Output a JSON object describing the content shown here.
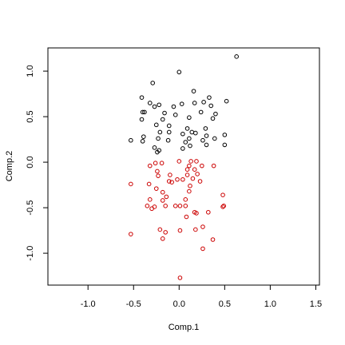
{
  "chart_data": {
    "type": "scatter",
    "xlabel": "Comp.1",
    "ylabel": "Comp.2",
    "xlim": [
      -1.44,
      1.54
    ],
    "ylim": [
      -1.35,
      1.255
    ],
    "xticks": [
      {
        "value": -1,
        "label": "-1.0"
      },
      -0.5,
      {
        "value": 0,
        "label": "0.0"
      },
      0.5,
      {
        "value": 1,
        "label": "1.0"
      },
      1.5
    ],
    "yticks": [
      {
        "value": -1,
        "label": "-1.0"
      },
      -0.5,
      {
        "value": 0,
        "label": "0.0"
      },
      0.5,
      {
        "value": 1,
        "label": "1.0"
      }
    ],
    "series": [
      {
        "color": "#000000",
        "x": [
          0.63,
          0.0,
          -0.29,
          0.16,
          -0.41,
          0.33,
          -0.32,
          0.17,
          -0.22,
          0.03,
          0.52,
          0.27,
          -0.27,
          -0.06,
          0.35,
          -0.4,
          -0.38,
          0.24,
          -0.16,
          -0.04,
          0.4,
          -0.41,
          -0.18,
          0.37,
          0.11,
          -0.25,
          -0.11,
          0.09,
          0.29,
          -0.21,
          -0.11,
          0.14,
          0.04,
          0.18,
          -0.39,
          0.3,
          0.5,
          -0.23,
          0.11,
          -0.53,
          -0.4,
          -0.12,
          0.26,
          0.39,
          0.07,
          0.3,
          0.5,
          -0.27,
          -0.22,
          0.04,
          -0.24,
          0.12
        ],
        "y": [
          1.16,
          0.99,
          0.87,
          0.78,
          0.71,
          0.71,
          0.65,
          0.65,
          0.63,
          0.64,
          0.67,
          0.66,
          0.61,
          0.61,
          0.62,
          0.55,
          0.55,
          0.55,
          0.54,
          0.52,
          0.53,
          0.47,
          0.47,
          0.48,
          0.49,
          0.41,
          0.4,
          0.37,
          0.37,
          0.33,
          0.33,
          0.33,
          0.31,
          0.32,
          0.28,
          0.29,
          0.3,
          0.26,
          0.26,
          0.24,
          0.23,
          0.24,
          0.24,
          0.26,
          0.22,
          0.19,
          0.19,
          0.16,
          0.13,
          0.15,
          0.11,
          0.18
        ]
      },
      {
        "color": "#cc0000",
        "x": [
          0.13,
          0.0,
          0.19,
          -0.26,
          -0.19,
          0.25,
          0.38,
          0.11,
          -0.32,
          0.09,
          0.17,
          -0.24,
          0.2,
          -0.1,
          0.09,
          -0.23,
          0.15,
          -0.02,
          0.04,
          -0.11,
          -0.08,
          0.23,
          -0.33,
          -0.53,
          0.12,
          -0.25,
          0.11,
          -0.18,
          0.48,
          -0.14,
          0.07,
          -0.32,
          -0.18,
          0.01,
          0.49,
          -0.35,
          0.48,
          -0.27,
          -0.15,
          0.07,
          -0.3,
          -0.04,
          0.17,
          0.19,
          0.32,
          0.08,
          0.26,
          0.18,
          0.01,
          -0.21,
          -0.15,
          -0.53,
          -0.18,
          0.37,
          0.26,
          0.01
        ],
        "y": [
          0.01,
          0.01,
          0.01,
          -0.01,
          -0.01,
          -0.04,
          -0.04,
          -0.04,
          -0.04,
          -0.08,
          -0.08,
          -0.1,
          -0.13,
          -0.14,
          -0.14,
          -0.15,
          -0.18,
          -0.19,
          -0.19,
          -0.21,
          -0.22,
          -0.21,
          -0.24,
          -0.24,
          -0.26,
          -0.29,
          -0.32,
          -0.33,
          -0.36,
          -0.38,
          -0.41,
          -0.41,
          -0.42,
          -0.48,
          -0.48,
          -0.48,
          -0.49,
          -0.49,
          -0.48,
          -0.48,
          -0.51,
          -0.48,
          -0.55,
          -0.56,
          -0.55,
          -0.6,
          -0.71,
          -0.74,
          -0.75,
          -0.74,
          -0.77,
          -0.79,
          -0.84,
          -0.85,
          -0.95,
          -1.27
        ]
      }
    ]
  }
}
